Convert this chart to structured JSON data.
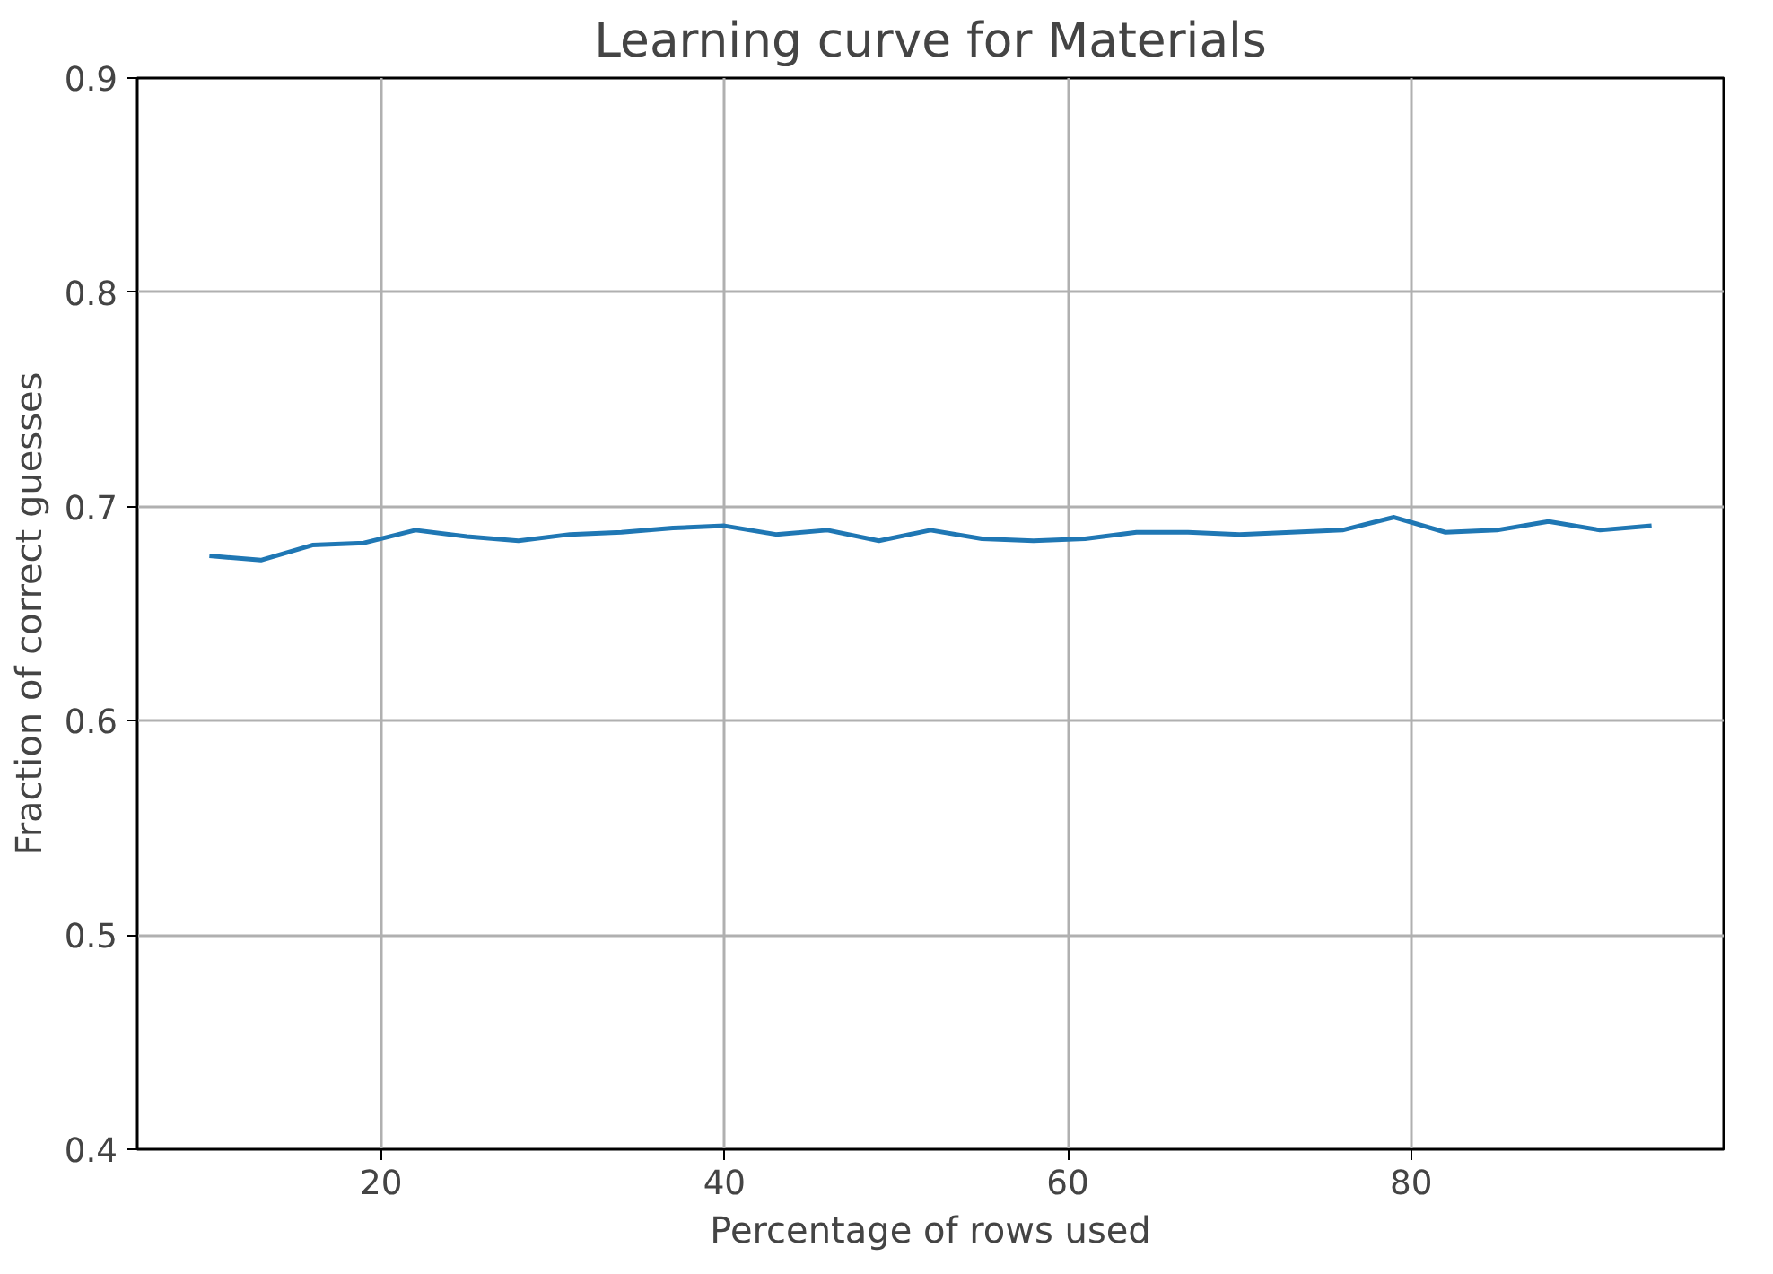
{
  "chart_data": {
    "type": "line",
    "title": "Learning curve for Materials",
    "xlabel": "Percentage of rows used",
    "ylabel": "Fraction of correct guesses",
    "x": [
      10,
      13,
      16,
      19,
      22,
      25,
      28,
      31,
      34,
      37,
      40,
      43,
      46,
      49,
      52,
      55,
      58,
      61,
      64,
      67,
      70,
      73,
      76,
      79,
      82,
      85,
      88,
      91,
      94
    ],
    "series": [
      {
        "color": "#1f77b4",
        "values": [
          0.677,
          0.675,
          0.682,
          0.683,
          0.689,
          0.686,
          0.684,
          0.687,
          0.688,
          0.69,
          0.691,
          0.687,
          0.689,
          0.684,
          0.689,
          0.685,
          0.684,
          0.685,
          0.688,
          0.688,
          0.687,
          0.688,
          0.689,
          0.695,
          0.688,
          0.689,
          0.693,
          0.689,
          0.691
        ]
      }
    ],
    "xlim": [
      5.8,
      98.2
    ],
    "ylim": [
      0.4,
      0.9
    ],
    "xticks": [
      20,
      40,
      60,
      80
    ],
    "yticks": [
      0.4,
      0.5,
      0.6,
      0.7,
      0.8,
      0.9
    ],
    "grid": true,
    "line_style": "solid"
  }
}
